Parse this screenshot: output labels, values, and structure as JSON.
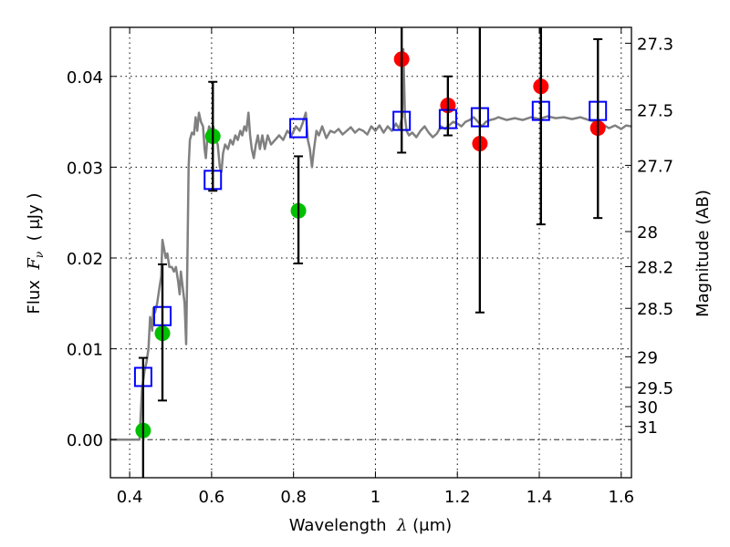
{
  "chart_data": {
    "type": "scatter",
    "title": "",
    "xlabel": "Wavelength  λ (μm)",
    "ylabel": "Flux  F_ν  ( μJy )",
    "ylabel_parts": {
      "prefix": "Flux  ",
      "symbol": "F",
      "subscript": "ν",
      "suffix": "  ( μJy )"
    },
    "xlabel_parts": {
      "prefix": "Wavelength  ",
      "symbol": "λ",
      "suffix": " (μm)"
    },
    "y2label": "Magnitude (AB)",
    "xlim": [
      0.353,
      1.625
    ],
    "ylim": [
      -0.0042,
      0.0454
    ],
    "grid": true,
    "x_ticks": [
      0.4,
      0.6,
      0.8,
      1.0,
      1.2,
      1.4,
      1.6
    ],
    "x_tick_labels": [
      "0.4",
      "0.6",
      "0.8",
      "1",
      "1.2",
      "1.4",
      "1.6"
    ],
    "y_ticks": [
      0.0,
      0.01,
      0.02,
      0.03,
      0.04
    ],
    "y_tick_labels": [
      "0.00",
      "0.01",
      "0.02",
      "0.03",
      "0.04"
    ],
    "y2_ticks_mag": [
      27.3,
      27.5,
      27.7,
      28,
      28.2,
      28.5,
      29,
      29.5,
      30,
      31
    ],
    "y2_tick_labels": [
      "27.3",
      "27.5",
      "27.7",
      "28",
      "28.2",
      "28.5",
      "29",
      "29.5",
      "30",
      "31"
    ],
    "mag_zeropoint_ujy": 23.9,
    "colors": {
      "spectrum": "#808080",
      "green": "#00bf00",
      "red": "#ff0000",
      "model": "#0000ff",
      "errorbar": "#000000",
      "zero_line": "#000000"
    },
    "series": [
      {
        "name": "model-spectrum",
        "kind": "line",
        "points": [
          [
            0.353,
            0.0
          ],
          [
            0.37,
            0.0
          ],
          [
            0.4,
            0.0
          ],
          [
            0.42,
            0.0
          ],
          [
            0.424,
            0.0
          ],
          [
            0.43,
            0.0055
          ],
          [
            0.436,
            0.0075
          ],
          [
            0.441,
            0.0085
          ],
          [
            0.446,
            0.01
          ],
          [
            0.45,
            0.0135
          ],
          [
            0.455,
            0.012
          ],
          [
            0.458,
            0.0145
          ],
          [
            0.462,
            0.014
          ],
          [
            0.467,
            0.015
          ],
          [
            0.472,
            0.0165
          ],
          [
            0.477,
            0.018
          ],
          [
            0.48,
            0.022
          ],
          [
            0.484,
            0.021
          ],
          [
            0.488,
            0.02
          ],
          [
            0.492,
            0.0205
          ],
          [
            0.497,
            0.019
          ],
          [
            0.503,
            0.019
          ],
          [
            0.508,
            0.0185
          ],
          [
            0.513,
            0.019
          ],
          [
            0.518,
            0.0175
          ],
          [
            0.522,
            0.016
          ],
          [
            0.525,
            0.0185
          ],
          [
            0.529,
            0.017
          ],
          [
            0.534,
            0.015
          ],
          [
            0.538,
            0.0105
          ],
          [
            0.541,
            0.02
          ],
          [
            0.544,
            0.03
          ],
          [
            0.547,
            0.033
          ],
          [
            0.552,
            0.0338
          ],
          [
            0.557,
            0.0336
          ],
          [
            0.561,
            0.0355
          ],
          [
            0.565,
            0.034
          ],
          [
            0.569,
            0.036
          ],
          [
            0.574,
            0.035
          ],
          [
            0.579,
            0.0345
          ],
          [
            0.583,
            0.032
          ],
          [
            0.586,
            0.031
          ],
          [
            0.59,
            0.0335
          ],
          [
            0.594,
            0.0345
          ],
          [
            0.599,
            0.034
          ],
          [
            0.604,
            0.0345
          ],
          [
            0.61,
            0.033
          ],
          [
            0.615,
            0.0325
          ],
          [
            0.62,
            0.03
          ],
          [
            0.624,
            0.0295
          ],
          [
            0.628,
            0.0315
          ],
          [
            0.633,
            0.0325
          ],
          [
            0.64,
            0.032
          ],
          [
            0.646,
            0.033
          ],
          [
            0.652,
            0.0325
          ],
          [
            0.658,
            0.0335
          ],
          [
            0.664,
            0.033
          ],
          [
            0.67,
            0.034
          ],
          [
            0.675,
            0.0335
          ],
          [
            0.68,
            0.0345
          ],
          [
            0.685,
            0.034
          ],
          [
            0.69,
            0.036
          ],
          [
            0.694,
            0.0335
          ],
          [
            0.698,
            0.032
          ],
          [
            0.703,
            0.031
          ],
          [
            0.708,
            0.0325
          ],
          [
            0.713,
            0.0335
          ],
          [
            0.718,
            0.032
          ],
          [
            0.724,
            0.0335
          ],
          [
            0.73,
            0.032
          ],
          [
            0.737,
            0.0335
          ],
          [
            0.745,
            0.0325
          ],
          [
            0.755,
            0.033
          ],
          [
            0.765,
            0.0335
          ],
          [
            0.775,
            0.033
          ],
          [
            0.785,
            0.034
          ],
          [
            0.795,
            0.0335
          ],
          [
            0.806,
            0.0345
          ],
          [
            0.815,
            0.034
          ],
          [
            0.822,
            0.0348
          ],
          [
            0.83,
            0.036
          ],
          [
            0.835,
            0.033
          ],
          [
            0.84,
            0.032
          ],
          [
            0.845,
            0.03
          ],
          [
            0.85,
            0.032
          ],
          [
            0.856,
            0.034
          ],
          [
            0.862,
            0.0335
          ],
          [
            0.87,
            0.0345
          ],
          [
            0.88,
            0.0332
          ],
          [
            0.89,
            0.034
          ],
          [
            0.9,
            0.0338
          ],
          [
            0.91,
            0.0342
          ],
          [
            0.92,
            0.0336
          ],
          [
            0.93,
            0.034
          ],
          [
            0.94,
            0.0344
          ],
          [
            0.95,
            0.0338
          ],
          [
            0.96,
            0.0342
          ],
          [
            0.97,
            0.034
          ],
          [
            0.98,
            0.0336
          ],
          [
            0.99,
            0.0345
          ],
          [
            1.0,
            0.034
          ],
          [
            1.01,
            0.0346
          ],
          [
            1.02,
            0.0338
          ],
          [
            1.03,
            0.0345
          ],
          [
            1.04,
            0.034
          ],
          [
            1.05,
            0.0348
          ],
          [
            1.058,
            0.0342
          ],
          [
            1.065,
            0.0355
          ],
          [
            1.068,
            0.043
          ],
          [
            1.072,
            0.0355
          ],
          [
            1.076,
            0.034
          ],
          [
            1.082,
            0.0335
          ],
          [
            1.09,
            0.0338
          ],
          [
            1.1,
            0.0333
          ],
          [
            1.11,
            0.034
          ],
          [
            1.12,
            0.0345
          ],
          [
            1.13,
            0.0338
          ],
          [
            1.14,
            0.0333
          ],
          [
            1.15,
            0.0337
          ],
          [
            1.16,
            0.0345
          ],
          [
            1.17,
            0.0342
          ],
          [
            1.18,
            0.0346
          ],
          [
            1.19,
            0.035
          ],
          [
            1.2,
            0.0348
          ],
          [
            1.21,
            0.0345
          ],
          [
            1.22,
            0.035
          ],
          [
            1.23,
            0.0352
          ],
          [
            1.24,
            0.0355
          ],
          [
            1.25,
            0.035
          ],
          [
            1.26,
            0.0345
          ],
          [
            1.27,
            0.035
          ],
          [
            1.28,
            0.0352
          ],
          [
            1.29,
            0.0353
          ],
          [
            1.3,
            0.0355
          ],
          [
            1.32,
            0.0352
          ],
          [
            1.34,
            0.0354
          ],
          [
            1.36,
            0.0352
          ],
          [
            1.38,
            0.0355
          ],
          [
            1.4,
            0.0353
          ],
          [
            1.42,
            0.0356
          ],
          [
            1.44,
            0.0354
          ],
          [
            1.46,
            0.0355
          ],
          [
            1.48,
            0.0353
          ],
          [
            1.5,
            0.0355
          ],
          [
            1.52,
            0.0352
          ],
          [
            1.54,
            0.035
          ],
          [
            1.555,
            0.0347
          ],
          [
            1.57,
            0.0343
          ],
          [
            1.585,
            0.0346
          ],
          [
            1.6,
            0.0342
          ],
          [
            1.612,
            0.0346
          ],
          [
            1.625,
            0.0345
          ]
        ]
      },
      {
        "name": "observed-green",
        "kind": "errorbar-points",
        "points": [
          {
            "x": 0.433,
            "y": 0.001,
            "ylow": -0.01,
            "yhigh": 0.009
          },
          {
            "x": 0.48,
            "y": 0.0117,
            "ylow": 0.0043,
            "yhigh": 0.0193
          },
          {
            "x": 0.603,
            "y": 0.0334,
            "ylow": 0.0274,
            "yhigh": 0.0394
          },
          {
            "x": 0.812,
            "y": 0.0252,
            "ylow": 0.0194,
            "yhigh": 0.0312
          }
        ]
      },
      {
        "name": "observed-red",
        "kind": "errorbar-points",
        "points": [
          {
            "x": 1.064,
            "y": 0.0419,
            "ylow": 0.0316,
            "yhigh": 0.06
          },
          {
            "x": 1.177,
            "y": 0.0368,
            "ylow": 0.0335,
            "yhigh": 0.04
          },
          {
            "x": 1.255,
            "y": 0.0326,
            "ylow": 0.014,
            "yhigh": 0.06
          },
          {
            "x": 1.404,
            "y": 0.0389,
            "ylow": 0.0237,
            "yhigh": 0.06
          },
          {
            "x": 1.543,
            "y": 0.0343,
            "ylow": 0.0244,
            "yhigh": 0.0441
          }
        ]
      },
      {
        "name": "model-photometry",
        "kind": "open-squares",
        "points": [
          {
            "x": 0.433,
            "y": 0.0069
          },
          {
            "x": 0.48,
            "y": 0.0136
          },
          {
            "x": 0.603,
            "y": 0.0286
          },
          {
            "x": 0.812,
            "y": 0.0343
          },
          {
            "x": 1.064,
            "y": 0.0351
          },
          {
            "x": 1.177,
            "y": 0.0353
          },
          {
            "x": 1.255,
            "y": 0.0355
          },
          {
            "x": 1.404,
            "y": 0.0362
          },
          {
            "x": 1.543,
            "y": 0.0362
          }
        ]
      }
    ]
  }
}
